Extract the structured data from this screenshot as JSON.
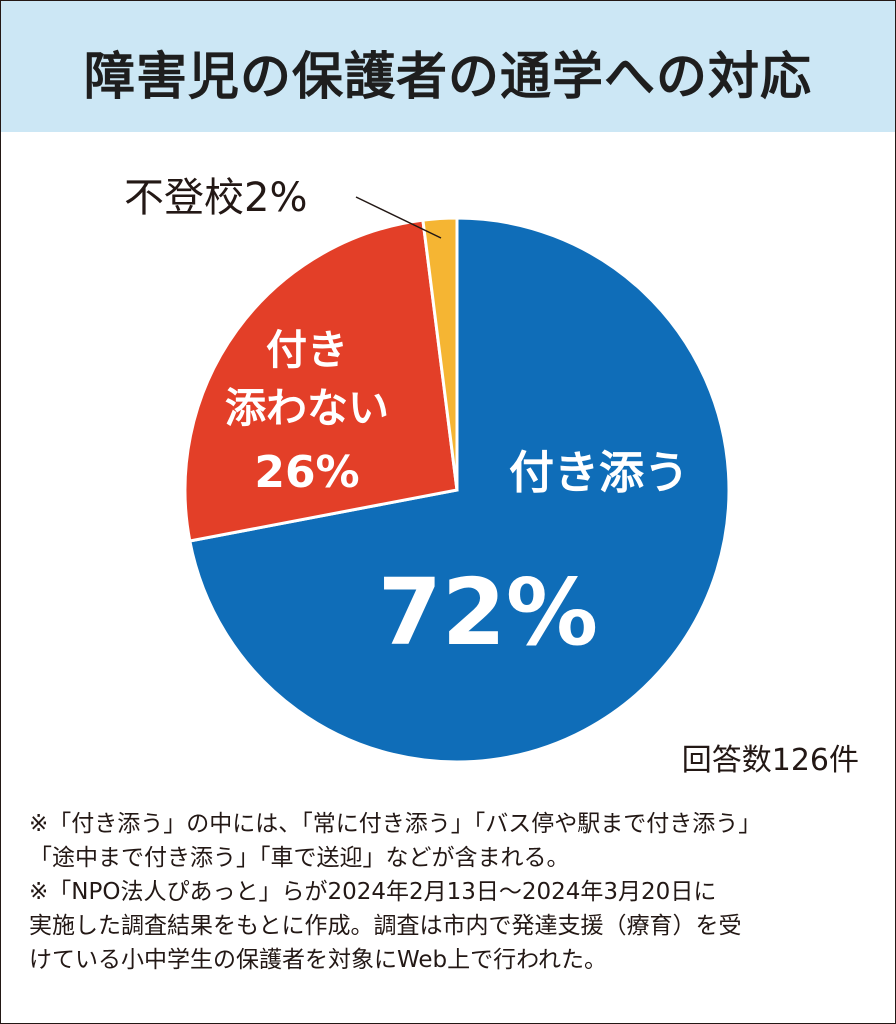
{
  "title": "障害児の保護者の通学への対応",
  "chart_data": {
    "type": "pie",
    "slices": [
      {
        "label": "付き添う",
        "value": 72,
        "value_label": "72%",
        "color": "#0f6db8"
      },
      {
        "label": "付き添わない",
        "label_lines": [
          "付き",
          "添わない"
        ],
        "value": 26,
        "value_label": "26%",
        "color": "#e33f28"
      },
      {
        "label": "不登校",
        "value": 2,
        "value_label": "不登校2%",
        "color": "#f5b533"
      }
    ],
    "start_angle_deg": 0,
    "direction": "clockwise"
  },
  "responses": "回答数126件",
  "notes": [
    "※「付き添う」の中には、「常に付き添う」「バス停や駅まで付き添う」",
    "「途中まで付き添う」「車で送迎」などが含まれる。",
    "※「NPO法人ぴあっと」らが2024年2月13日～2024年3月20日に",
    "実施した調査結果をもとに作成。調査は市内で発達支援（療育）を受",
    "けている小中学生の保護者を対象にWeb上で行われた。"
  ]
}
